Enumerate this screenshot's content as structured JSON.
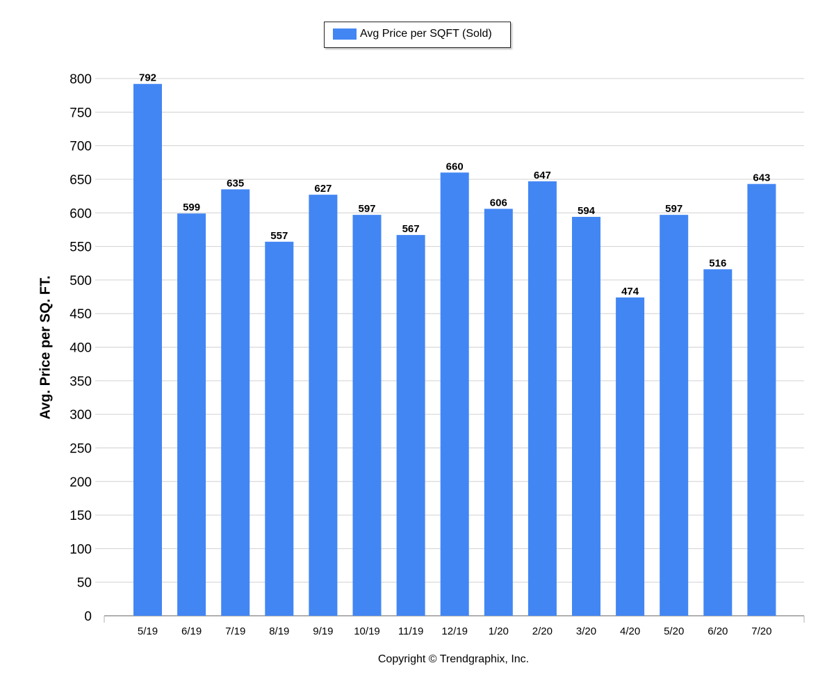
{
  "legend": {
    "label": "Avg Price per SQFT (Sold)"
  },
  "footer": {
    "copyright": "Copyright © Trendgraphix, Inc."
  },
  "colors": {
    "bar": "#4286f4",
    "grid": "#d0d0d0",
    "axis": "#b0b0b0",
    "text": "#000000"
  },
  "chart_data": {
    "type": "bar",
    "title": "",
    "xlabel": "",
    "ylabel": "Avg. Price per SQ. FT.",
    "ylim": [
      0,
      800
    ],
    "ytick_step": 50,
    "grid": true,
    "legend_position": "top-center",
    "categories": [
      "5/19",
      "6/19",
      "7/19",
      "8/19",
      "9/19",
      "10/19",
      "11/19",
      "12/19",
      "1/20",
      "2/20",
      "3/20",
      "4/20",
      "5/20",
      "6/20",
      "7/20"
    ],
    "series": [
      {
        "name": "Avg Price per SQFT (Sold)",
        "values": [
          792,
          599,
          635,
          557,
          627,
          597,
          567,
          660,
          606,
          647,
          594,
          474,
          597,
          516,
          643
        ]
      }
    ]
  }
}
